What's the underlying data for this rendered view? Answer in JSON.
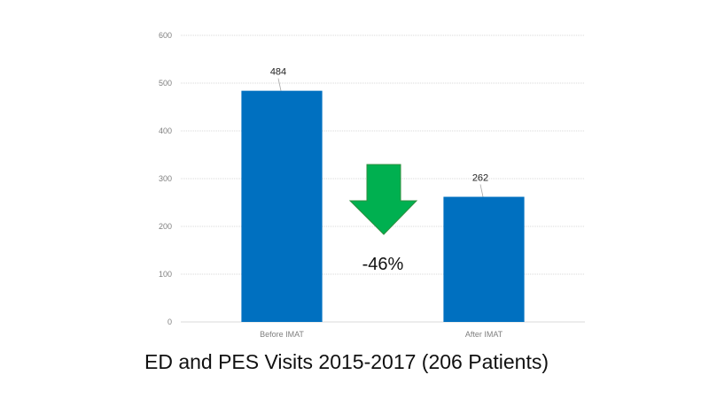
{
  "chart_data": {
    "type": "bar",
    "title": "ED and PES Visits 2015-2017 (206 Patients)",
    "categories": [
      "Before IMAT",
      "After IMAT"
    ],
    "values": [
      484,
      262
    ],
    "data_labels": [
      "484",
      "262"
    ],
    "ylim": [
      0,
      600
    ],
    "yticks": [
      0,
      100,
      200,
      300,
      400,
      500,
      600
    ],
    "grid": true,
    "legend": "none",
    "annotation": {
      "text": "-46%",
      "arrow": "down",
      "arrow_color": "#00B050"
    },
    "bar_color": "#0070C0"
  }
}
